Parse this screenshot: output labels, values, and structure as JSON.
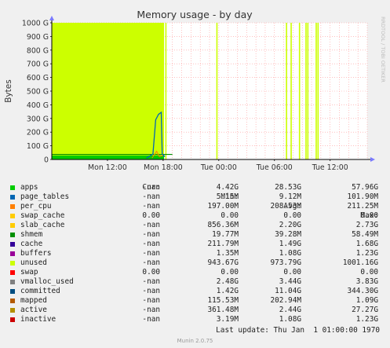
{
  "chart_data": {
    "type": "area",
    "title": "Memory usage - by day",
    "ylabel": "Bytes",
    "watermark": "RRDTOOL / TOBI OETIKER",
    "ylim": [
      0,
      1000
    ],
    "y_ticks": [
      "1000 G",
      "900 G",
      "800 G",
      "700 G",
      "600 G",
      "500 G",
      "400 G",
      "300 G",
      "200 G",
      "100 G",
      "0"
    ],
    "x_ticks": [
      "Mon 12:00",
      "Mon 18:00",
      "Tue 00:00",
      "Tue 06:00",
      "Tue 12:00"
    ],
    "xlim_hours": [
      6,
      40
    ],
    "x_tick_hours": [
      12,
      18,
      24,
      30,
      36
    ],
    "grid": true,
    "colors": {
      "background": "#ffffff",
      "unused": "#ccff00",
      "apps": "#00cc00",
      "committed": "#0066b3",
      "shmem": "#008f00",
      "axis": "#000000",
      "grid": "#ff9999"
    },
    "unused_spans_hours": [
      [
        6,
        18.1
      ]
    ],
    "unused_spikes_hours": [
      18.3,
      23.8,
      31.3,
      31.8,
      32.7,
      33.4,
      33.6,
      34.5,
      34.7
    ],
    "series": [
      {
        "name": "apps",
        "baseline_g": 29,
        "start_hour": 6,
        "end_hour": 19
      },
      {
        "name": "committed",
        "peak_hour": 17.8,
        "peak_g": 345,
        "start_hour": 16.2,
        "end_hour": 18.2,
        "baseline_g": 10
      }
    ]
  },
  "legend": {
    "headers": {
      "cur": "Cur:",
      "min": "Min:",
      "avg": "Avg:",
      "max": "Max:"
    },
    "rows": [
      {
        "name": "apps",
        "color": "#00cc00",
        "cur": "-nan",
        "min": "4.42G",
        "avg": "28.53G",
        "max": "57.96G"
      },
      {
        "name": "page_tables",
        "color": "#0066b3",
        "cur": "-nan",
        "min": "5.15M",
        "avg": "9.12M",
        "max": "101.90M"
      },
      {
        "name": "per_cpu",
        "color": "#ff8000",
        "cur": "-nan",
        "min": "197.00M",
        "avg": "208.53M",
        "max": "211.25M"
      },
      {
        "name": "swap_cache",
        "color": "#ffcc00",
        "cur": "0.00",
        "min": "0.00",
        "avg": "0.00",
        "max": "0.00"
      },
      {
        "name": "slab_cache",
        "color": "#ffcc00",
        "cur": "-nan",
        "min": "856.36M",
        "avg": "2.20G",
        "max": "2.73G"
      },
      {
        "name": "shmem",
        "color": "#008f00",
        "cur": "-nan",
        "min": "19.77M",
        "avg": "39.28M",
        "max": "58.49M"
      },
      {
        "name": "cache",
        "color": "#330099",
        "cur": "-nan",
        "min": "211.79M",
        "avg": "1.49G",
        "max": "1.68G"
      },
      {
        "name": "buffers",
        "color": "#990099",
        "cur": "-nan",
        "min": "1.35M",
        "avg": "1.08G",
        "max": "1.23G"
      },
      {
        "name": "unused",
        "color": "#ccff00",
        "cur": "-nan",
        "min": "943.67G",
        "avg": "973.79G",
        "max": "1001.16G"
      },
      {
        "name": "swap",
        "color": "#ff0000",
        "cur": "0.00",
        "min": "0.00",
        "avg": "0.00",
        "max": "0.00"
      },
      {
        "name": "vmalloc_used",
        "color": "#808080",
        "cur": "-nan",
        "min": "2.48G",
        "avg": "3.44G",
        "max": "3.83G"
      },
      {
        "name": "committed",
        "color": "#004d80",
        "cur": "-nan",
        "min": "1.42G",
        "avg": "11.04G",
        "max": "344.30G"
      },
      {
        "name": "mapped",
        "color": "#b35a00",
        "cur": "-nan",
        "min": "115.53M",
        "avg": "202.94M",
        "max": "1.09G"
      },
      {
        "name": "active",
        "color": "#b38f00",
        "cur": "-nan",
        "min": "361.48M",
        "avg": "2.44G",
        "max": "27.27G"
      },
      {
        "name": "inactive",
        "color": "#cc0000",
        "cur": "-nan",
        "min": "3.19M",
        "avg": "1.08G",
        "max": "1.23G"
      }
    ]
  },
  "last_update": "Last update: Thu Jan  1 01:00:00 1970",
  "footer": "Munin 2.0.75"
}
